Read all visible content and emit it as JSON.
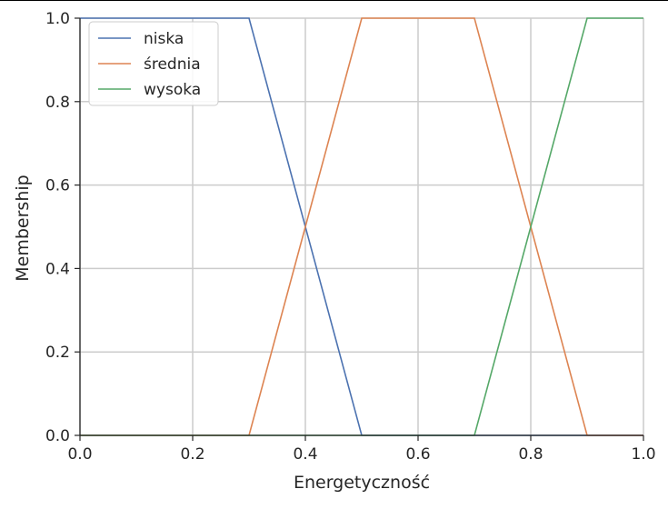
{
  "chart_data": {
    "type": "line",
    "xlabel": "Energetyczność",
    "ylabel": "Membership",
    "xlim": [
      0.0,
      1.0
    ],
    "ylim": [
      0.0,
      1.0
    ],
    "xticks": [
      "0.0",
      "0.2",
      "0.4",
      "0.6",
      "0.8",
      "1.0"
    ],
    "yticks": [
      "0.0",
      "0.2",
      "0.4",
      "0.6",
      "0.8",
      "1.0"
    ],
    "grid": true,
    "legend_position": "top-left",
    "series": [
      {
        "name": "niska",
        "color": "#4c72b0",
        "x": [
          0.0,
          0.3,
          0.5,
          1.0
        ],
        "y": [
          1.0,
          1.0,
          0.0,
          0.0
        ]
      },
      {
        "name": "średnia",
        "color": "#dd8452",
        "x": [
          0.0,
          0.3,
          0.5,
          0.7,
          0.9,
          1.0
        ],
        "y": [
          0.0,
          0.0,
          1.0,
          1.0,
          0.0,
          0.0
        ]
      },
      {
        "name": "wysoka",
        "color": "#55a868",
        "x": [
          0.0,
          0.7,
          0.9,
          1.0
        ],
        "y": [
          0.0,
          0.0,
          1.0,
          1.0
        ]
      }
    ]
  }
}
